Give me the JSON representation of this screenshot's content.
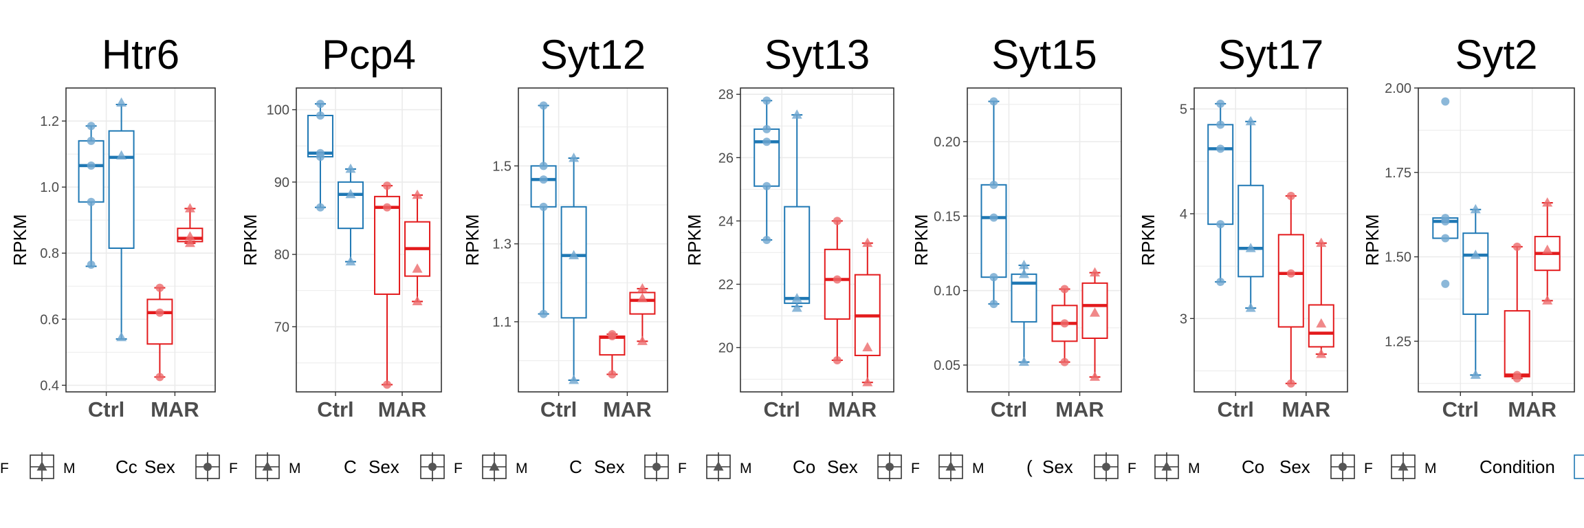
{
  "chart_data": [
    {
      "type": "box",
      "title": "Htr6",
      "ylabel": "RPKM",
      "categories": [
        "Ctrl",
        "MAR"
      ],
      "ylim": [
        0.38,
        1.3
      ],
      "yticks": [
        0.4,
        0.6,
        0.8,
        1.0,
        1.2
      ],
      "ytick_labels": [
        "0.4",
        "0.6",
        "0.8",
        "1.0",
        "1.2"
      ],
      "groups": [
        {
          "condition": "Ctrl",
          "sex": "F",
          "box": {
            "min": 0.76,
            "q1": 0.955,
            "median": 1.065,
            "q3": 1.14,
            "max": 1.185
          },
          "points": [
            0.765,
            0.955,
            1.065,
            1.14,
            1.185
          ]
        },
        {
          "condition": "Ctrl",
          "sex": "M",
          "box": {
            "min": 0.54,
            "q1": 0.815,
            "median": 1.09,
            "q3": 1.17,
            "max": 1.25
          },
          "points": [
            0.545,
            1.095,
            1.255
          ]
        },
        {
          "condition": "MAR",
          "sex": "F",
          "box": {
            "min": 0.425,
            "q1": 0.525,
            "median": 0.62,
            "q3": 0.66,
            "max": 0.695
          },
          "points": [
            0.425,
            0.62,
            0.695
          ]
        },
        {
          "condition": "MAR",
          "sex": "M",
          "box": {
            "min": 0.83,
            "q1": 0.835,
            "median": 0.845,
            "q3": 0.875,
            "max": 0.935
          },
          "points": [
            0.83,
            0.85,
            0.935
          ]
        }
      ]
    },
    {
      "type": "box",
      "title": "Pcp4",
      "ylabel": "RPKM",
      "categories": [
        "Ctrl",
        "MAR"
      ],
      "ylim": [
        61,
        103
      ],
      "yticks": [
        70,
        80,
        90,
        100
      ],
      "ytick_labels": [
        "70",
        "80",
        "90",
        "100"
      ],
      "groups": [
        {
          "condition": "Ctrl",
          "sex": "F",
          "box": {
            "min": 86.5,
            "q1": 93.5,
            "median": 94,
            "q3": 99.2,
            "max": 100.8
          },
          "points": [
            86.5,
            93.5,
            94,
            99.2,
            100.8
          ]
        },
        {
          "condition": "Ctrl",
          "sex": "M",
          "box": {
            "min": 79,
            "q1": 83.6,
            "median": 88.3,
            "q3": 90,
            "max": 91.8
          },
          "points": [
            79,
            88.3,
            91.8
          ]
        },
        {
          "condition": "MAR",
          "sex": "F",
          "box": {
            "min": 62,
            "q1": 74.5,
            "median": 86.5,
            "q3": 88,
            "max": 89.5
          },
          "points": [
            62,
            86.5,
            89.5
          ]
        },
        {
          "condition": "MAR",
          "sex": "M",
          "box": {
            "min": 73.5,
            "q1": 77,
            "median": 80.8,
            "q3": 84.5,
            "max": 88.2
          },
          "points": [
            73.5,
            78,
            88.2
          ]
        }
      ]
    },
    {
      "type": "box",
      "title": "Syt12",
      "ylabel": "RPKM",
      "categories": [
        "Ctrl",
        "MAR"
      ],
      "ylim": [
        0.92,
        1.7
      ],
      "yticks": [
        1.1,
        1.3,
        1.5
      ],
      "ytick_labels": [
        "1.1",
        "1.3",
        "1.5"
      ],
      "groups": [
        {
          "condition": "Ctrl",
          "sex": "F",
          "box": {
            "min": 1.12,
            "q1": 1.395,
            "median": 1.465,
            "q3": 1.5,
            "max": 1.655
          },
          "points": [
            1.12,
            1.395,
            1.465,
            1.5,
            1.655
          ]
        },
        {
          "condition": "Ctrl",
          "sex": "M",
          "box": {
            "min": 0.95,
            "q1": 1.11,
            "median": 1.27,
            "q3": 1.395,
            "max": 1.52
          },
          "points": [
            0.95,
            1.27,
            1.52
          ]
        },
        {
          "condition": "MAR",
          "sex": "F",
          "box": {
            "min": 0.965,
            "q1": 1.015,
            "median": 1.06,
            "q3": 1.063,
            "max": 1.068
          },
          "points": [
            0.965,
            1.063,
            1.068
          ]
        },
        {
          "condition": "MAR",
          "sex": "M",
          "box": {
            "min": 1.05,
            "q1": 1.12,
            "median": 1.155,
            "q3": 1.175,
            "max": 1.185
          },
          "points": [
            1.05,
            1.16,
            1.185
          ]
        }
      ]
    },
    {
      "type": "box",
      "title": "Syt13",
      "ylabel": "RPKM",
      "categories": [
        "Ctrl",
        "MAR"
      ],
      "ylim": [
        18.6,
        28.2
      ],
      "yticks": [
        20,
        22,
        24,
        26,
        28
      ],
      "ytick_labels": [
        "20",
        "22",
        "24",
        "26",
        "28"
      ],
      "groups": [
        {
          "condition": "Ctrl",
          "sex": "F",
          "box": {
            "min": 23.4,
            "q1": 25.1,
            "median": 26.5,
            "q3": 26.9,
            "max": 27.8
          },
          "points": [
            23.4,
            25.1,
            26.5,
            26.9,
            27.8
          ]
        },
        {
          "condition": "Ctrl",
          "sex": "M",
          "box": {
            "min": 21.3,
            "q1": 21.4,
            "median": 21.55,
            "q3": 24.45,
            "max": 27.35
          },
          "points": [
            21.25,
            21.55,
            27.35
          ]
        },
        {
          "condition": "MAR",
          "sex": "F",
          "box": {
            "min": 19.6,
            "q1": 20.9,
            "median": 22.15,
            "q3": 23.1,
            "max": 24
          },
          "points": [
            19.6,
            22.15,
            24
          ]
        },
        {
          "condition": "MAR",
          "sex": "M",
          "box": {
            "min": 18.9,
            "q1": 19.75,
            "median": 21,
            "q3": 22.3,
            "max": 23.3
          },
          "points": [
            18.9,
            20,
            23.3
          ]
        }
      ]
    },
    {
      "type": "box",
      "title": "Syt15",
      "ylabel": "RPKM",
      "categories": [
        "Ctrl",
        "MAR"
      ],
      "ylim": [
        0.032,
        0.236
      ],
      "yticks": [
        0.05,
        0.1,
        0.15,
        0.2
      ],
      "ytick_labels": [
        "0.05",
        "0.10",
        "0.15",
        "0.20"
      ],
      "groups": [
        {
          "condition": "Ctrl",
          "sex": "F",
          "box": {
            "min": 0.091,
            "q1": 0.109,
            "median": 0.149,
            "q3": 0.171,
            "max": 0.227
          },
          "points": [
            0.091,
            0.109,
            0.149,
            0.171,
            0.227
          ]
        },
        {
          "condition": "Ctrl",
          "sex": "M",
          "box": {
            "min": 0.052,
            "q1": 0.079,
            "median": 0.105,
            "q3": 0.111,
            "max": 0.117
          },
          "points": [
            0.052,
            0.111,
            0.117
          ]
        },
        {
          "condition": "MAR",
          "sex": "F",
          "box": {
            "min": 0.052,
            "q1": 0.066,
            "median": 0.078,
            "q3": 0.09,
            "max": 0.101
          },
          "points": [
            0.052,
            0.078,
            0.101
          ]
        },
        {
          "condition": "MAR",
          "sex": "M",
          "box": {
            "min": 0.042,
            "q1": 0.068,
            "median": 0.09,
            "q3": 0.105,
            "max": 0.112
          },
          "points": [
            0.042,
            0.085,
            0.112
          ]
        }
      ]
    },
    {
      "type": "box",
      "title": "Syt17",
      "ylabel": "RPKM",
      "categories": [
        "Ctrl",
        "MAR"
      ],
      "ylim": [
        2.3,
        5.2
      ],
      "yticks": [
        3,
        4,
        5
      ],
      "ytick_labels": [
        "3",
        "4",
        "5"
      ],
      "groups": [
        {
          "condition": "Ctrl",
          "sex": "F",
          "box": {
            "min": 3.35,
            "q1": 3.9,
            "median": 4.62,
            "q3": 4.85,
            "max": 5.05
          },
          "points": [
            3.35,
            3.9,
            4.62,
            4.85,
            5.05
          ]
        },
        {
          "condition": "Ctrl",
          "sex": "M",
          "box": {
            "min": 3.1,
            "q1": 3.4,
            "median": 3.67,
            "q3": 4.27,
            "max": 4.88
          },
          "points": [
            3.1,
            3.67,
            4.88
          ]
        },
        {
          "condition": "MAR",
          "sex": "F",
          "box": {
            "min": 2.38,
            "q1": 2.92,
            "median": 3.43,
            "q3": 3.8,
            "max": 4.17
          },
          "points": [
            2.38,
            3.43,
            4.17
          ]
        },
        {
          "condition": "MAR",
          "sex": "M",
          "box": {
            "min": 2.66,
            "q1": 2.73,
            "median": 2.86,
            "q3": 3.13,
            "max": 3.72
          },
          "points": [
            2.66,
            2.95,
            3.72
          ]
        }
      ]
    },
    {
      "type": "box",
      "title": "Syt2",
      "ylabel": "RPKM",
      "categories": [
        "Ctrl",
        "MAR"
      ],
      "ylim": [
        1.1,
        2.0
      ],
      "yticks": [
        1.25,
        1.5,
        1.75,
        2.0
      ],
      "ytick_labels": [
        "1.25",
        "1.50",
        "1.75",
        "2.00"
      ],
      "groups": [
        {
          "condition": "Ctrl",
          "sex": "F",
          "box": {
            "min": 1.555,
            "q1": 1.555,
            "median": 1.605,
            "q3": 1.615,
            "max": 1.615
          },
          "points": [
            1.42,
            1.555,
            1.605,
            1.615,
            1.96
          ]
        },
        {
          "condition": "Ctrl",
          "sex": "M",
          "box": {
            "min": 1.15,
            "q1": 1.33,
            "median": 1.505,
            "q3": 1.57,
            "max": 1.64
          },
          "points": [
            1.15,
            1.505,
            1.64
          ]
        },
        {
          "condition": "MAR",
          "sex": "F",
          "box": {
            "min": 1.14,
            "q1": 1.145,
            "median": 1.15,
            "q3": 1.34,
            "max": 1.53
          },
          "points": [
            1.14,
            1.15,
            1.53
          ]
        },
        {
          "condition": "MAR",
          "sex": "M",
          "box": {
            "min": 1.37,
            "q1": 1.46,
            "median": 1.51,
            "q3": 1.56,
            "max": 1.66
          },
          "points": [
            1.37,
            1.52,
            1.66
          ]
        }
      ]
    }
  ],
  "colors": {
    "Ctrl": "#1f78b4",
    "MAR": "#e31a1c",
    "Ctrl_point": "#6fa6cf",
    "MAR_point": "#ec6a6c",
    "grid": "#ebebeb",
    "frame": "#333333",
    "ytick": "#4d4d4d",
    "xtick": "#4d4d4d"
  },
  "legend": {
    "position": "bottom",
    "fragments": [
      {
        "text": "F",
        "kind": "partial"
      },
      {
        "text": "M",
        "kind": "partial"
      },
      {
        "text": "Cc",
        "kind": "partial"
      },
      {
        "text": "Sex",
        "kind": "title"
      },
      {
        "text": "F"
      },
      {
        "text": "M"
      },
      {
        "text": "C",
        "kind": "partial"
      },
      {
        "text": "Sex",
        "kind": "title"
      },
      {
        "text": "F"
      },
      {
        "text": "M"
      },
      {
        "text": "C",
        "kind": "partial"
      },
      {
        "text": "Sex",
        "kind": "title"
      },
      {
        "text": "F"
      },
      {
        "text": "M"
      },
      {
        "text": "Co",
        "kind": "partial"
      },
      {
        "text": "Sex",
        "kind": "title"
      },
      {
        "text": "F"
      },
      {
        "text": "M"
      },
      {
        "text": "(",
        "kind": "partial"
      },
      {
        "text": "Sex",
        "kind": "title"
      },
      {
        "text": "F"
      },
      {
        "text": "M"
      },
      {
        "text": "Co",
        "kind": "partial"
      },
      {
        "text": "Sex",
        "kind": "title"
      },
      {
        "text": "F"
      },
      {
        "text": "M"
      },
      {
        "text": "Condition",
        "kind": "title"
      }
    ]
  }
}
